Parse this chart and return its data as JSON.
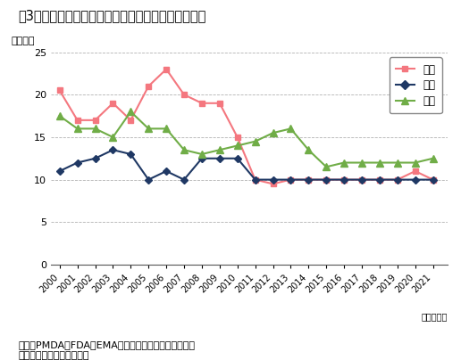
{
  "title": "嘦3　審査期間（中央値）の年次推移（全承認品目）",
  "ylabel": "（月数）",
  "xlabel_suffix": "（承認年）",
  "source_line1": "出所：PMDA、FDA、EMAの各公開情報をもとに医薬産",
  "source_line2": "　　業政策研究所にて作成",
  "years": [
    2000,
    2001,
    2002,
    2003,
    2004,
    2005,
    2006,
    2007,
    2008,
    2009,
    2010,
    2011,
    2012,
    2013,
    2014,
    2015,
    2016,
    2017,
    2018,
    2019,
    2020,
    2021
  ],
  "japan": [
    20.5,
    17.0,
    17.0,
    19.0,
    17.0,
    21.0,
    23.0,
    20.0,
    19.0,
    19.0,
    15.0,
    10.0,
    9.5,
    10.0,
    10.0,
    10.0,
    10.0,
    10.0,
    10.0,
    10.0,
    11.0,
    10.0
  ],
  "usa": [
    11.0,
    12.0,
    12.5,
    13.5,
    13.0,
    10.0,
    11.0,
    10.0,
    12.5,
    12.5,
    12.5,
    10.0,
    10.0,
    10.0,
    10.0,
    10.0,
    10.0,
    10.0,
    10.0,
    10.0,
    10.0,
    10.0
  ],
  "eu": [
    17.5,
    16.0,
    16.0,
    15.0,
    18.0,
    16.0,
    16.0,
    13.5,
    13.0,
    13.5,
    14.0,
    14.5,
    15.5,
    16.0,
    13.5,
    11.5,
    12.0,
    12.0,
    12.0,
    12.0,
    12.0,
    12.5
  ],
  "japan_color": "#f4777f",
  "usa_color": "#1f3864",
  "eu_color": "#70ad47",
  "ylim": [
    0,
    25
  ],
  "yticks": [
    0,
    5,
    10,
    15,
    20,
    25
  ],
  "background_color": "#ffffff",
  "legend_labels": [
    "日本",
    "米国",
    "欧州"
  ]
}
